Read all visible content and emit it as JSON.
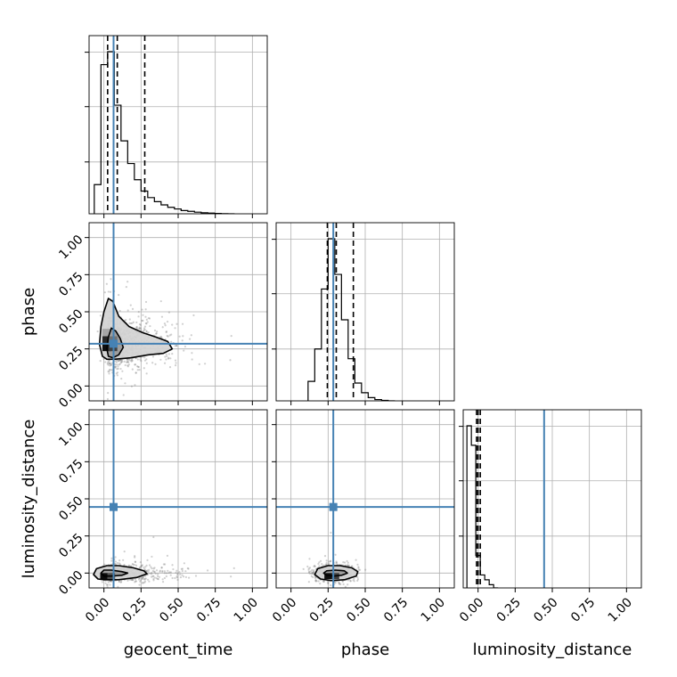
{
  "chart_data": {
    "type": "corner",
    "parameters": [
      "geocent_time",
      "phase",
      "luminosity_distance"
    ],
    "axis_range": [
      -0.1,
      1.1
    ],
    "ticks": [
      0.0,
      0.25,
      0.5,
      0.75,
      1.0
    ],
    "tick_labels": [
      "0.00",
      "0.25",
      "0.50",
      "0.75",
      "1.00"
    ],
    "grid": true,
    "truth_values": {
      "geocent_time": 0.065,
      "phase": 0.285,
      "luminosity_distance": 0.445
    },
    "truth_color": "#4682b4",
    "histograms": [
      {
        "parameter": "geocent_time",
        "bin_edges": [
          -0.065,
          -0.02,
          0.025,
          0.07,
          0.115,
          0.16,
          0.205,
          0.25,
          0.295,
          0.34,
          0.385,
          0.43,
          0.475,
          0.52,
          0.565,
          0.61,
          0.655,
          0.7,
          0.745,
          0.79,
          0.835,
          0.88
        ],
        "counts": [
          0.18,
          0.92,
          1.0,
          0.67,
          0.45,
          0.31,
          0.21,
          0.14,
          0.1,
          0.075,
          0.055,
          0.04,
          0.03,
          0.02,
          0.015,
          0.01,
          0.006,
          0.004,
          0.002,
          0.001,
          0.0
        ],
        "quantiles": [
          0.025,
          0.09,
          0.275
        ]
      },
      {
        "parameter": "phase",
        "bin_edges": [
          0.115,
          0.16,
          0.205,
          0.25,
          0.295,
          0.34,
          0.385,
          0.43,
          0.475,
          0.52,
          0.565,
          0.61,
          0.655,
          0.7
        ],
        "counts": [
          0.12,
          0.32,
          0.69,
          1.0,
          0.78,
          0.5,
          0.26,
          0.11,
          0.05,
          0.02,
          0.008,
          0.003,
          0.0
        ],
        "quantiles": [
          0.245,
          0.305,
          0.42
        ]
      },
      {
        "parameter": "luminosity_distance",
        "bin_edges": [
          -0.075,
          -0.045,
          -0.015,
          0.015,
          0.045,
          0.075,
          0.105,
          0.135
        ],
        "counts": [
          1.0,
          0.88,
          0.2,
          0.08,
          0.05,
          0.02,
          0.0
        ],
        "quantiles": [
          -0.01,
          0.0,
          0.015
        ]
      }
    ],
    "joint_panels": [
      {
        "x": "geocent_time",
        "y": "phase",
        "contours": [
          [
            [
              0.03,
              0.2
            ],
            [
              0.02,
              0.25
            ],
            [
              0.03,
              0.33
            ],
            [
              0.05,
              0.39
            ],
            [
              0.08,
              0.37
            ],
            [
              0.11,
              0.32
            ],
            [
              0.13,
              0.26
            ],
            [
              0.1,
              0.21
            ],
            [
              0.06,
              0.19
            ]
          ],
          [
            [
              -0.01,
              0.2
            ],
            [
              -0.03,
              0.28
            ],
            [
              -0.02,
              0.4
            ],
            [
              0.0,
              0.5
            ],
            [
              0.03,
              0.59
            ],
            [
              0.06,
              0.57
            ],
            [
              0.1,
              0.47
            ],
            [
              0.17,
              0.4
            ],
            [
              0.26,
              0.36
            ],
            [
              0.35,
              0.33
            ],
            [
              0.43,
              0.3
            ],
            [
              0.46,
              0.25
            ],
            [
              0.4,
              0.22
            ],
            [
              0.3,
              0.21
            ],
            [
              0.18,
              0.19
            ],
            [
              0.07,
              0.18
            ],
            [
              0.02,
              0.18
            ]
          ]
        ],
        "density_cells": [
          {
            "x": 0.02,
            "y": 0.26,
            "w": 0.06,
            "h": 0.05,
            "level": 0.95
          },
          {
            "x": 0.06,
            "y": 0.26,
            "w": 0.06,
            "h": 0.05,
            "level": 0.75
          },
          {
            "x": 0.02,
            "y": 0.31,
            "w": 0.06,
            "h": 0.05,
            "level": 0.85
          },
          {
            "x": 0.06,
            "y": 0.31,
            "w": 0.06,
            "h": 0.05,
            "level": 0.55
          },
          {
            "x": 0.02,
            "y": 0.36,
            "w": 0.06,
            "h": 0.05,
            "level": 0.35
          }
        ]
      },
      {
        "x": "geocent_time",
        "y": "luminosity_distance",
        "contours": [
          [
            [
              0.0,
              -0.02
            ],
            [
              -0.02,
              0.0
            ],
            [
              0.0,
              0.02
            ],
            [
              0.05,
              0.02
            ],
            [
              0.12,
              0.01
            ],
            [
              0.16,
              0.0
            ],
            [
              0.12,
              -0.015
            ],
            [
              0.05,
              -0.02
            ]
          ],
          [
            [
              -0.04,
              -0.04
            ],
            [
              -0.07,
              -0.01
            ],
            [
              -0.05,
              0.03
            ],
            [
              0.02,
              0.05
            ],
            [
              0.1,
              0.05
            ],
            [
              0.2,
              0.035
            ],
            [
              0.27,
              0.015
            ],
            [
              0.29,
              -0.005
            ],
            [
              0.22,
              -0.03
            ],
            [
              0.1,
              -0.045
            ],
            [
              0.0,
              -0.045
            ]
          ]
        ],
        "density_cells": [
          {
            "x": 0.0,
            "y": -0.02,
            "w": 0.05,
            "h": 0.04,
            "level": 0.95
          },
          {
            "x": 0.05,
            "y": -0.02,
            "w": 0.05,
            "h": 0.04,
            "level": 0.7
          }
        ]
      },
      {
        "x": "phase",
        "y": "luminosity_distance",
        "contours": [
          [
            [
              0.24,
              -0.015
            ],
            [
              0.22,
              0.0
            ],
            [
              0.24,
              0.015
            ],
            [
              0.3,
              0.02
            ],
            [
              0.36,
              0.015
            ],
            [
              0.38,
              0.0
            ],
            [
              0.34,
              -0.015
            ],
            [
              0.29,
              -0.02
            ]
          ],
          [
            [
              0.2,
              -0.04
            ],
            [
              0.16,
              -0.01
            ],
            [
              0.18,
              0.03
            ],
            [
              0.25,
              0.05
            ],
            [
              0.33,
              0.05
            ],
            [
              0.41,
              0.035
            ],
            [
              0.45,
              0.01
            ],
            [
              0.44,
              -0.02
            ],
            [
              0.36,
              -0.045
            ],
            [
              0.27,
              -0.05
            ]
          ]
        ],
        "density_cells": [
          {
            "x": 0.25,
            "y": -0.02,
            "w": 0.05,
            "h": 0.04,
            "level": 0.95
          },
          {
            "x": 0.3,
            "y": -0.02,
            "w": 0.05,
            "h": 0.04,
            "level": 0.75
          }
        ]
      }
    ],
    "scatter_samples": [
      {
        "x": "geocent_time",
        "y": "phase",
        "count": 900,
        "x_peak": 0.07,
        "x_tail_scale": 0.13,
        "y_center": 0.29,
        "y_sd": 0.085
      },
      {
        "x": "geocent_time",
        "y": "luminosity_distance",
        "count": 700,
        "x_peak": 0.07,
        "x_tail_scale": 0.13,
        "y_center": 0.0,
        "y_sd": 0.03
      },
      {
        "x": "phase",
        "y": "luminosity_distance",
        "count": 700,
        "x_center": 0.29,
        "x_sd": 0.07,
        "y_center": 0.0,
        "y_sd": 0.03
      }
    ]
  }
}
